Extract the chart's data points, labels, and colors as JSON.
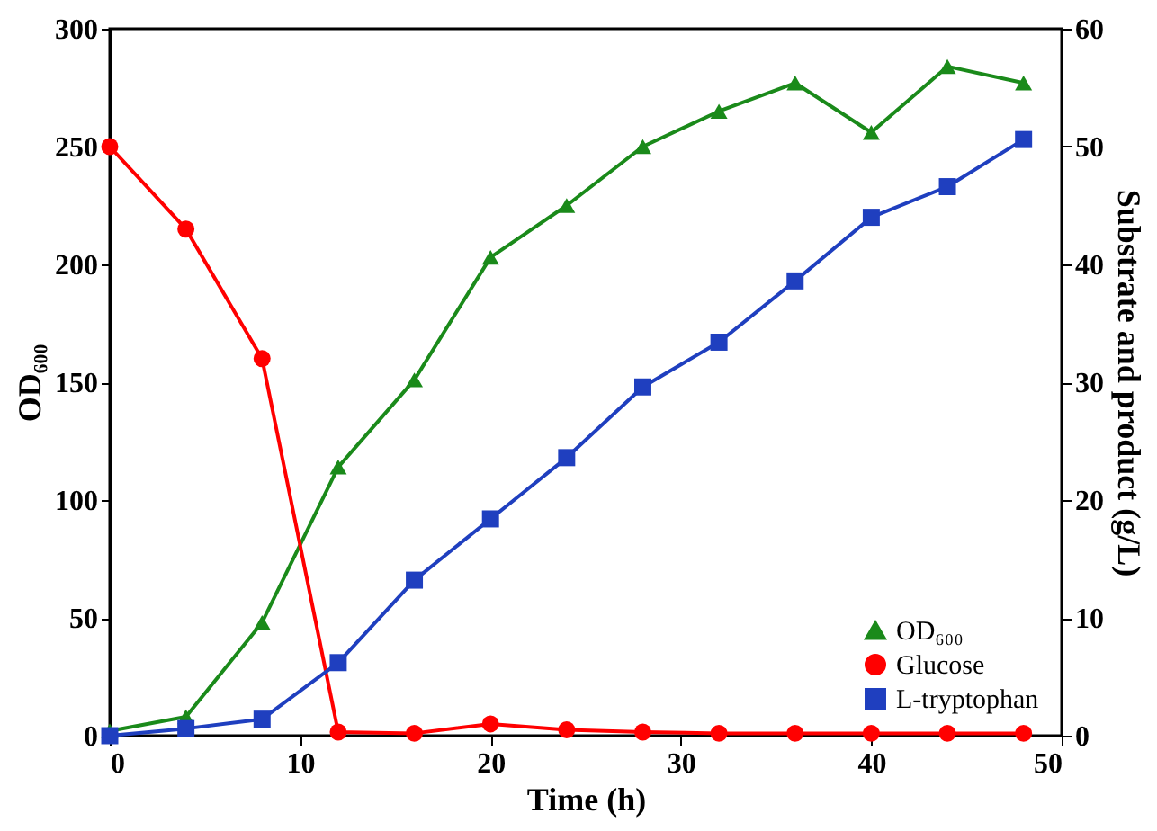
{
  "chart_data": {
    "type": "line",
    "xlabel": "Time (h)",
    "ylabel": "OD₆₀₀",
    "y2label": "Substrate and product (g/L)",
    "x": [
      0,
      4,
      8,
      12,
      16,
      20,
      24,
      28,
      32,
      36,
      40,
      44,
      48
    ],
    "xlim": [
      0,
      50
    ],
    "xticks": [
      0,
      10,
      20,
      30,
      40,
      50
    ],
    "ylim": [
      0,
      300
    ],
    "yticks": [
      0,
      50,
      100,
      150,
      200,
      250,
      300
    ],
    "y2lim": [
      0,
      60
    ],
    "y2ticks": [
      0,
      10,
      20,
      30,
      40,
      50,
      60
    ],
    "grid": false,
    "legend": "bottom right",
    "line_style": "solid",
    "series": [
      {
        "name": "OD₆₀₀",
        "color": "#1a8a1a",
        "marker": "triangle",
        "values": [
          2,
          8,
          48,
          114,
          151,
          203,
          225,
          250,
          265,
          277,
          256,
          284,
          277
        ]
      },
      {
        "name": "Glucose",
        "color": "#ff0000",
        "marker": "circle",
        "axis": "y2",
        "values": [
          50,
          43,
          32,
          0.3,
          0.2,
          1,
          0.5,
          0.3,
          0.2,
          0.2,
          0.2,
          0.2,
          0.2
        ]
      },
      {
        "name": "L-tryptophan",
        "color": "#1f3fbf",
        "marker": "square",
        "axis": "y2",
        "values": [
          0,
          0.6,
          1.4,
          6.2,
          13.2,
          18.4,
          23.6,
          29.6,
          33.4,
          38.6,
          44,
          46.6,
          50.6
        ]
      }
    ]
  }
}
